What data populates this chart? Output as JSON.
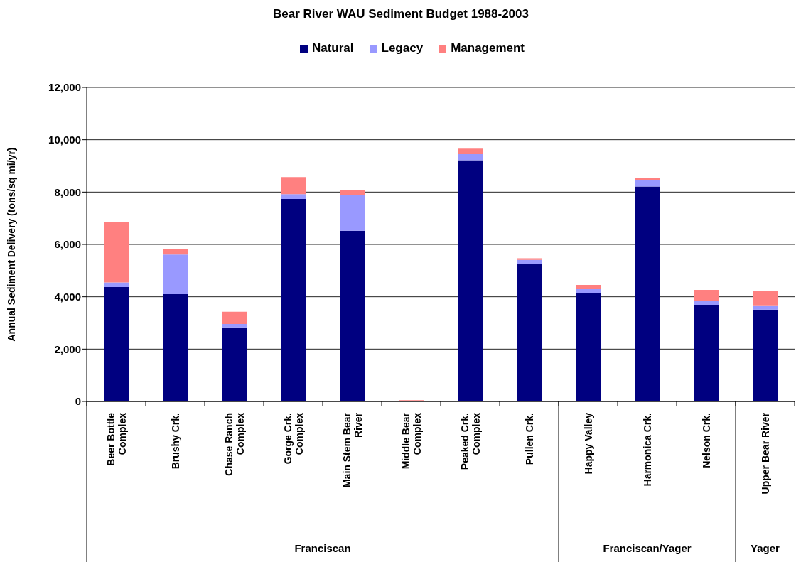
{
  "chart_data": {
    "type": "bar",
    "title": "Bear River WAU Sediment Budget 1988-2003",
    "ylabel": "Annual Sediment Delivery (tons/sq mi/yr)",
    "categories": [
      "Beer Bottle Complex",
      "Brushy Crk.",
      "Chase Ranch Complex",
      "Gorge Crk. Complex",
      "Main Stem Bear River",
      "Middle Bear Complex",
      "Peaked Crk. Complex",
      "Pullen Crk.",
      "Happy Valley",
      "Harmonica Crk.",
      "Nelson Crk.",
      "Upper Bear River"
    ],
    "series": [
      {
        "name": "Natural",
        "color": "#000080",
        "values": [
          4370,
          4100,
          2830,
          7740,
          6520,
          0,
          9220,
          5250,
          4130,
          8210,
          3690,
          3510
        ]
      },
      {
        "name": "Legacy",
        "color": "#9999ff",
        "values": [
          180,
          1510,
          130,
          180,
          1380,
          0,
          230,
          160,
          160,
          250,
          150,
          160
        ]
      },
      {
        "name": "Management",
        "color": "#ff8080",
        "values": [
          2300,
          210,
          470,
          650,
          180,
          50,
          210,
          60,
          160,
          90,
          420,
          550
        ]
      }
    ],
    "stacked": true,
    "ylim": [
      0,
      12000
    ],
    "yticks": [
      {
        "value": 0,
        "label": "0"
      },
      {
        "value": 2000,
        "label": "2,000"
      },
      {
        "value": 4000,
        "label": "4,000"
      },
      {
        "value": 6000,
        "label": "6,000"
      },
      {
        "value": 8000,
        "label": "8,000"
      },
      {
        "value": 10000,
        "label": "10,000"
      },
      {
        "value": 12000,
        "label": "12,000"
      }
    ],
    "grid": "y",
    "legend": "top",
    "annotations": [
      "Franciscan",
      "Franciscan/Yager",
      "Yager"
    ]
  }
}
